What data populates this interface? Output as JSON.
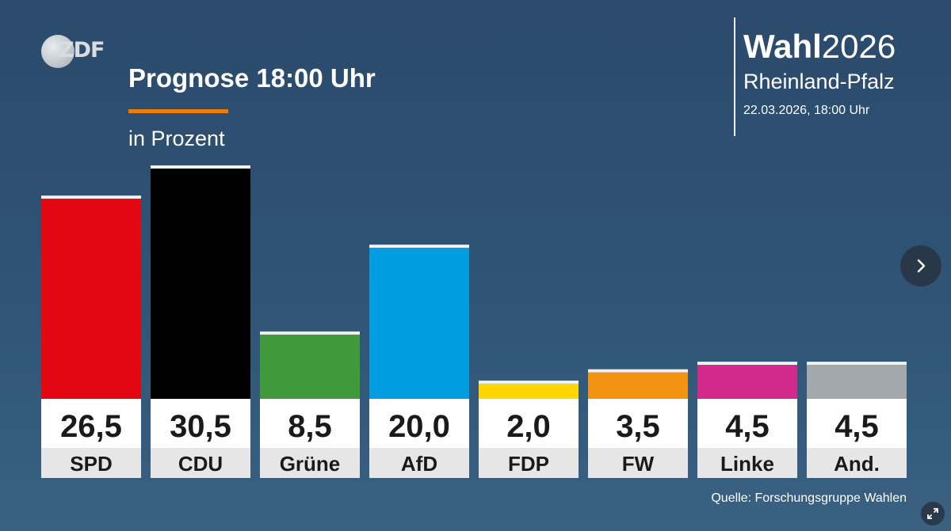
{
  "logo": {
    "text": "ZDF"
  },
  "header": {
    "title": "Prognose 18:00 Uhr",
    "subtitle": "in Prozent"
  },
  "election": {
    "word": "Wahl",
    "year": "2026",
    "region": "Rheinland-Pfalz",
    "datetime": "22.03.2026, 18:00 Uhr"
  },
  "footer": {
    "source": "Quelle: Forschungsgruppe Wahlen"
  },
  "icons": {
    "next": "chevron-right-icon",
    "expand": "expand-icon"
  },
  "chart_data": {
    "type": "bar",
    "categories": [
      "SPD",
      "CDU",
      "Grüne",
      "AfD",
      "FDP",
      "FW",
      "Linke",
      "And."
    ],
    "values": [
      26.5,
      30.5,
      8.5,
      20.0,
      2.0,
      3.5,
      4.5,
      4.5
    ],
    "value_labels": [
      "26,5",
      "30,5",
      "8,5",
      "20,0",
      "2,0",
      "3,5",
      "4,5",
      "4,5"
    ],
    "colors": [
      "#e30613",
      "#000000",
      "#409a3c",
      "#009ee0",
      "#ffd600",
      "#f39314",
      "#d22a8c",
      "#a3a8ad"
    ],
    "title": "Prognose 18:00 Uhr",
    "subtitle": "in Prozent",
    "ylim": [
      0,
      30.5
    ]
  }
}
